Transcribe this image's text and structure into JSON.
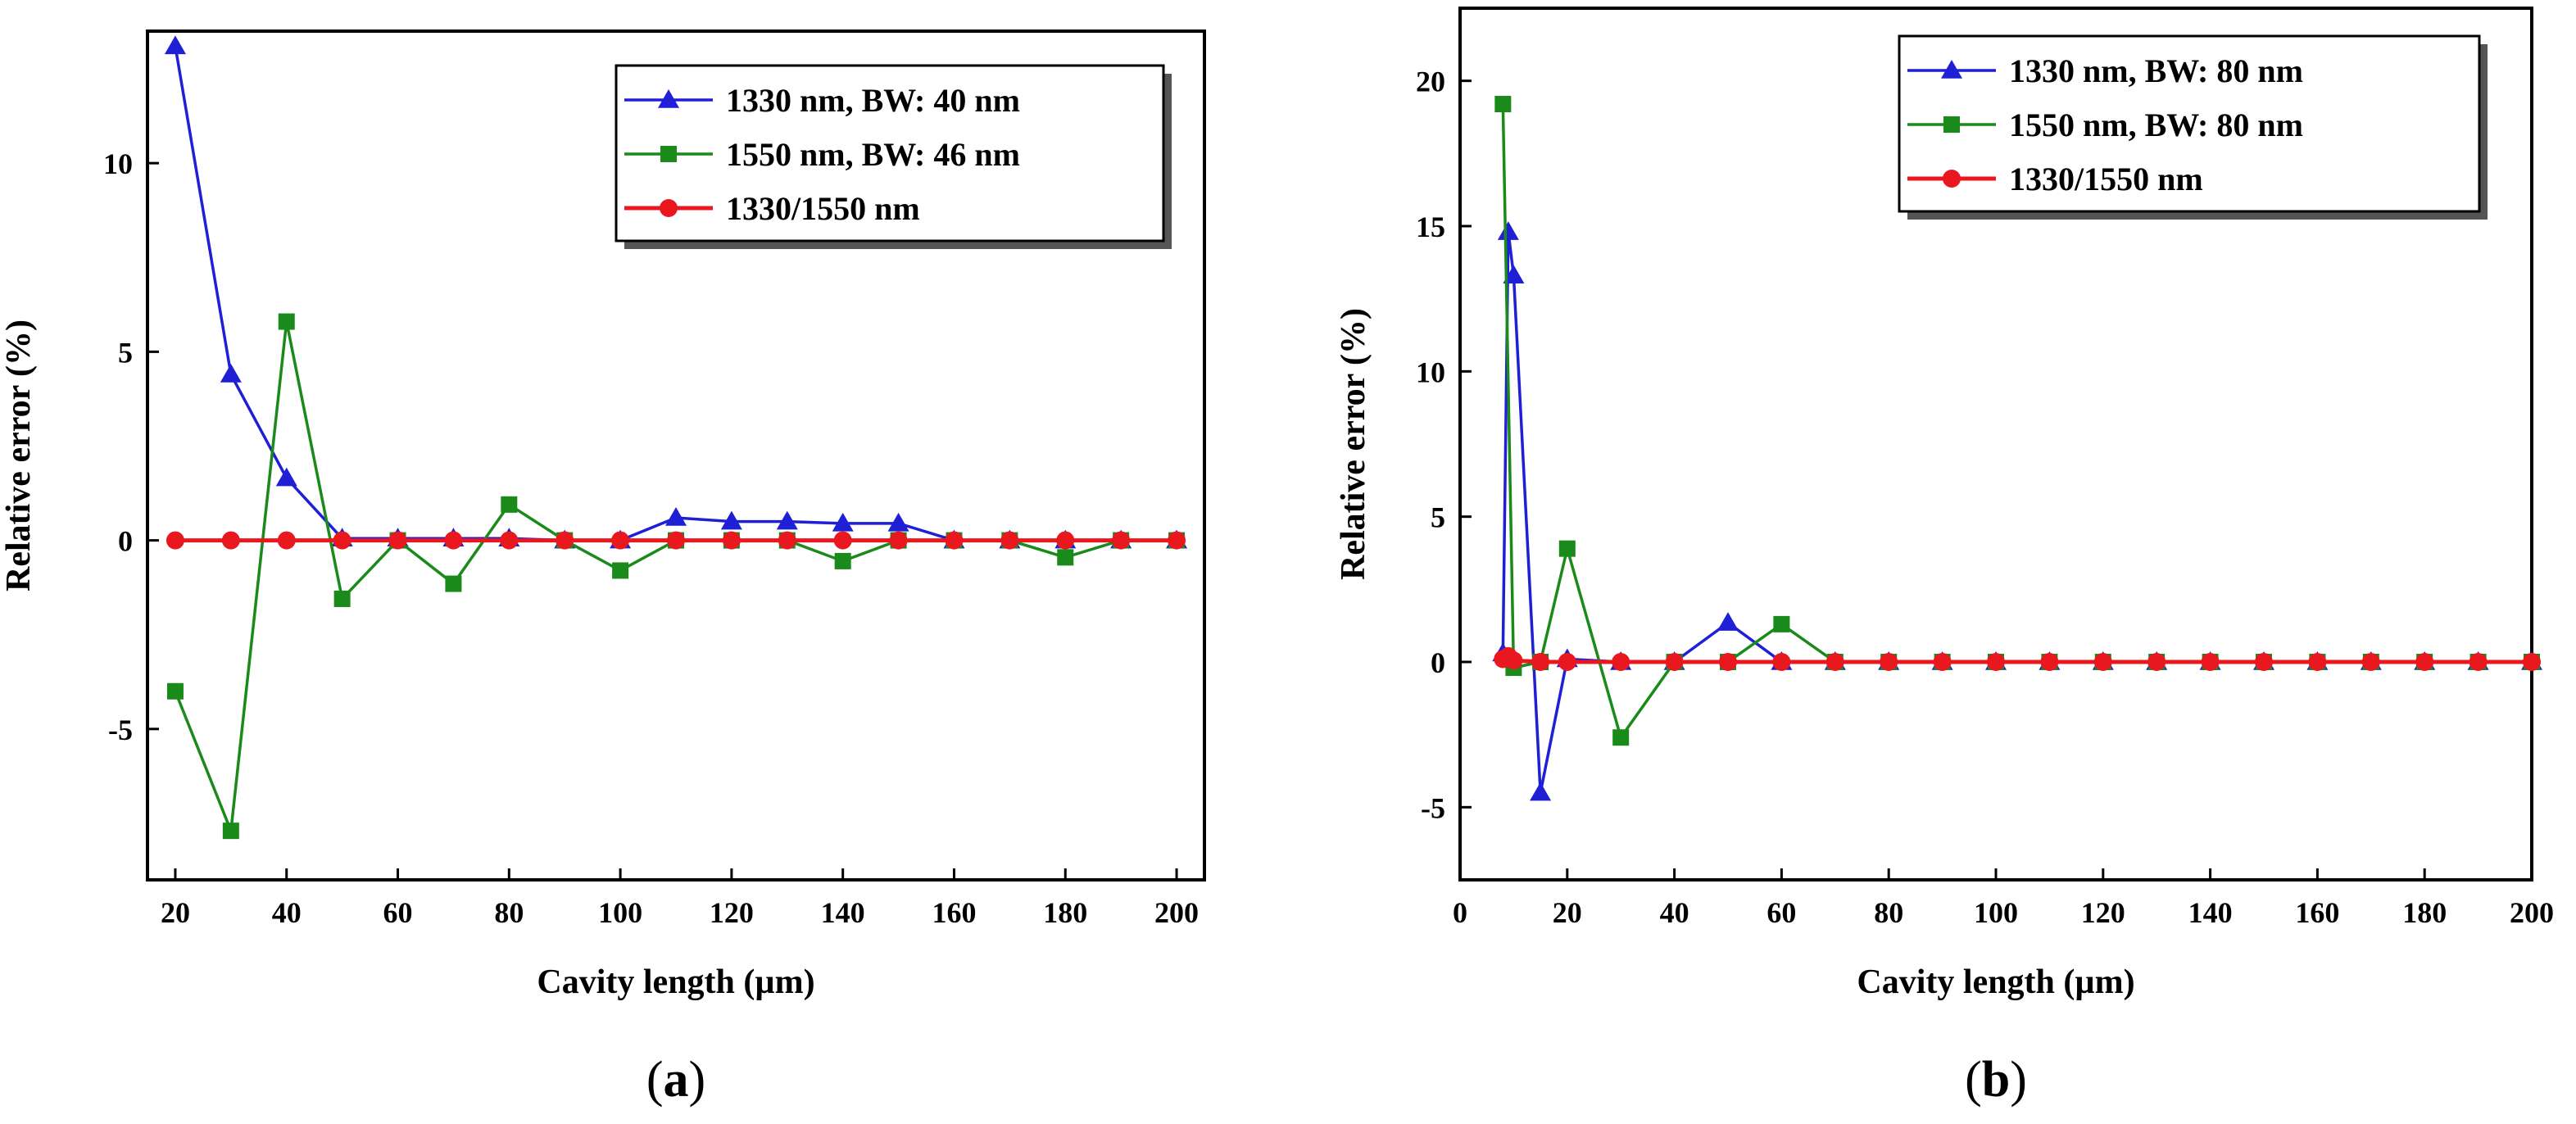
{
  "chart_data": [
    {
      "type": "line",
      "panel_label": "(a)",
      "xlabel": "Cavity length (µm)",
      "ylabel": "Relative error (%)",
      "xlim": [
        15,
        205
      ],
      "ylim": [
        -9,
        13.5
      ],
      "xticks": [
        20,
        40,
        60,
        80,
        100,
        120,
        140,
        160,
        180,
        200
      ],
      "yticks": [
        -5,
        0,
        5,
        10
      ],
      "legend_position": "top-right",
      "series": [
        {
          "name": "1330 nm, BW: 40 nm",
          "color": "#1f1fd6",
          "marker": "triangle",
          "x": [
            20,
            30,
            40,
            50,
            60,
            70,
            80,
            90,
            100,
            110,
            120,
            130,
            140,
            150,
            160,
            170,
            180,
            190,
            200
          ],
          "y": [
            13.1,
            4.4,
            1.65,
            0.05,
            0.05,
            0.05,
            0.05,
            0.0,
            0.0,
            0.6,
            0.5,
            0.5,
            0.45,
            0.45,
            0.0,
            0.0,
            0.0,
            0.0,
            0.0
          ]
        },
        {
          "name": "1550 nm, BW: 46 nm",
          "color": "#1a8a1a",
          "marker": "square",
          "x": [
            20,
            30,
            40,
            50,
            60,
            70,
            80,
            90,
            100,
            110,
            120,
            130,
            140,
            150,
            160,
            170,
            180,
            190,
            200
          ],
          "y": [
            -4.0,
            -7.7,
            5.8,
            -1.55,
            0.0,
            -1.15,
            0.95,
            0.0,
            -0.8,
            0.0,
            0.0,
            0.0,
            -0.55,
            0.0,
            0.0,
            0.0,
            -0.45,
            0.0,
            0.0
          ]
        },
        {
          "name": "1330/1550 nm",
          "color": "#e8181e",
          "marker": "circle",
          "x": [
            20,
            30,
            40,
            50,
            60,
            70,
            80,
            90,
            100,
            110,
            120,
            130,
            140,
            150,
            160,
            170,
            180,
            190,
            200
          ],
          "y": [
            0,
            0,
            0,
            0,
            0,
            0,
            0,
            0,
            0,
            0,
            0,
            0,
            0,
            0,
            0,
            0,
            0,
            0,
            0
          ]
        }
      ]
    },
    {
      "type": "line",
      "panel_label": "(b)",
      "xlabel": "Cavity length (µm)",
      "ylabel": "Relative error (%)",
      "xlim": [
        0,
        200
      ],
      "ylim": [
        -7.5,
        22.5
      ],
      "xticks": [
        0,
        20,
        40,
        60,
        80,
        100,
        120,
        140,
        160,
        180,
        200
      ],
      "yticks": [
        -5,
        0,
        5,
        10,
        15,
        20
      ],
      "legend_position": "top-right",
      "series": [
        {
          "name": "1330 nm, BW: 80 nm",
          "color": "#1f1fd6",
          "marker": "triangle",
          "x": [
            8,
            9,
            10,
            15,
            20,
            30,
            40,
            50,
            60,
            70,
            80,
            90,
            100,
            110,
            120,
            130,
            140,
            150,
            160,
            170,
            180,
            190,
            200
          ],
          "y": [
            0.3,
            14.8,
            13.3,
            -4.5,
            0.1,
            0.0,
            0.0,
            1.35,
            0.0,
            0.0,
            0.0,
            0.0,
            0.0,
            0.0,
            0.0,
            0.0,
            0.0,
            0.0,
            0.0,
            0.0,
            0.0,
            0.0,
            0.0
          ]
        },
        {
          "name": "1550 nm, BW: 80 nm",
          "color": "#1a8a1a",
          "marker": "square",
          "x": [
            8,
            10,
            15,
            20,
            30,
            40,
            50,
            60,
            70,
            80,
            90,
            100,
            110,
            120,
            130,
            140,
            150,
            160,
            170,
            180,
            190,
            200
          ],
          "y": [
            19.2,
            -0.2,
            0.0,
            3.9,
            -2.6,
            0.0,
            0.0,
            1.3,
            0.0,
            0.0,
            0.0,
            0.0,
            0.0,
            0.0,
            0.0,
            0.0,
            0.0,
            0.0,
            0.0,
            0.0,
            0.0,
            0.0
          ]
        },
        {
          "name": "1330/1550 nm",
          "color": "#e8181e",
          "marker": "circle",
          "x": [
            8,
            9,
            10,
            15,
            20,
            30,
            40,
            50,
            60,
            70,
            80,
            90,
            100,
            110,
            120,
            130,
            140,
            150,
            160,
            170,
            180,
            190,
            200
          ],
          "y": [
            0.1,
            0.2,
            0.05,
            0,
            0,
            0,
            0,
            0,
            0,
            0,
            0,
            0,
            0,
            0,
            0,
            0,
            0,
            0,
            0,
            0,
            0,
            0,
            0
          ]
        }
      ]
    }
  ]
}
